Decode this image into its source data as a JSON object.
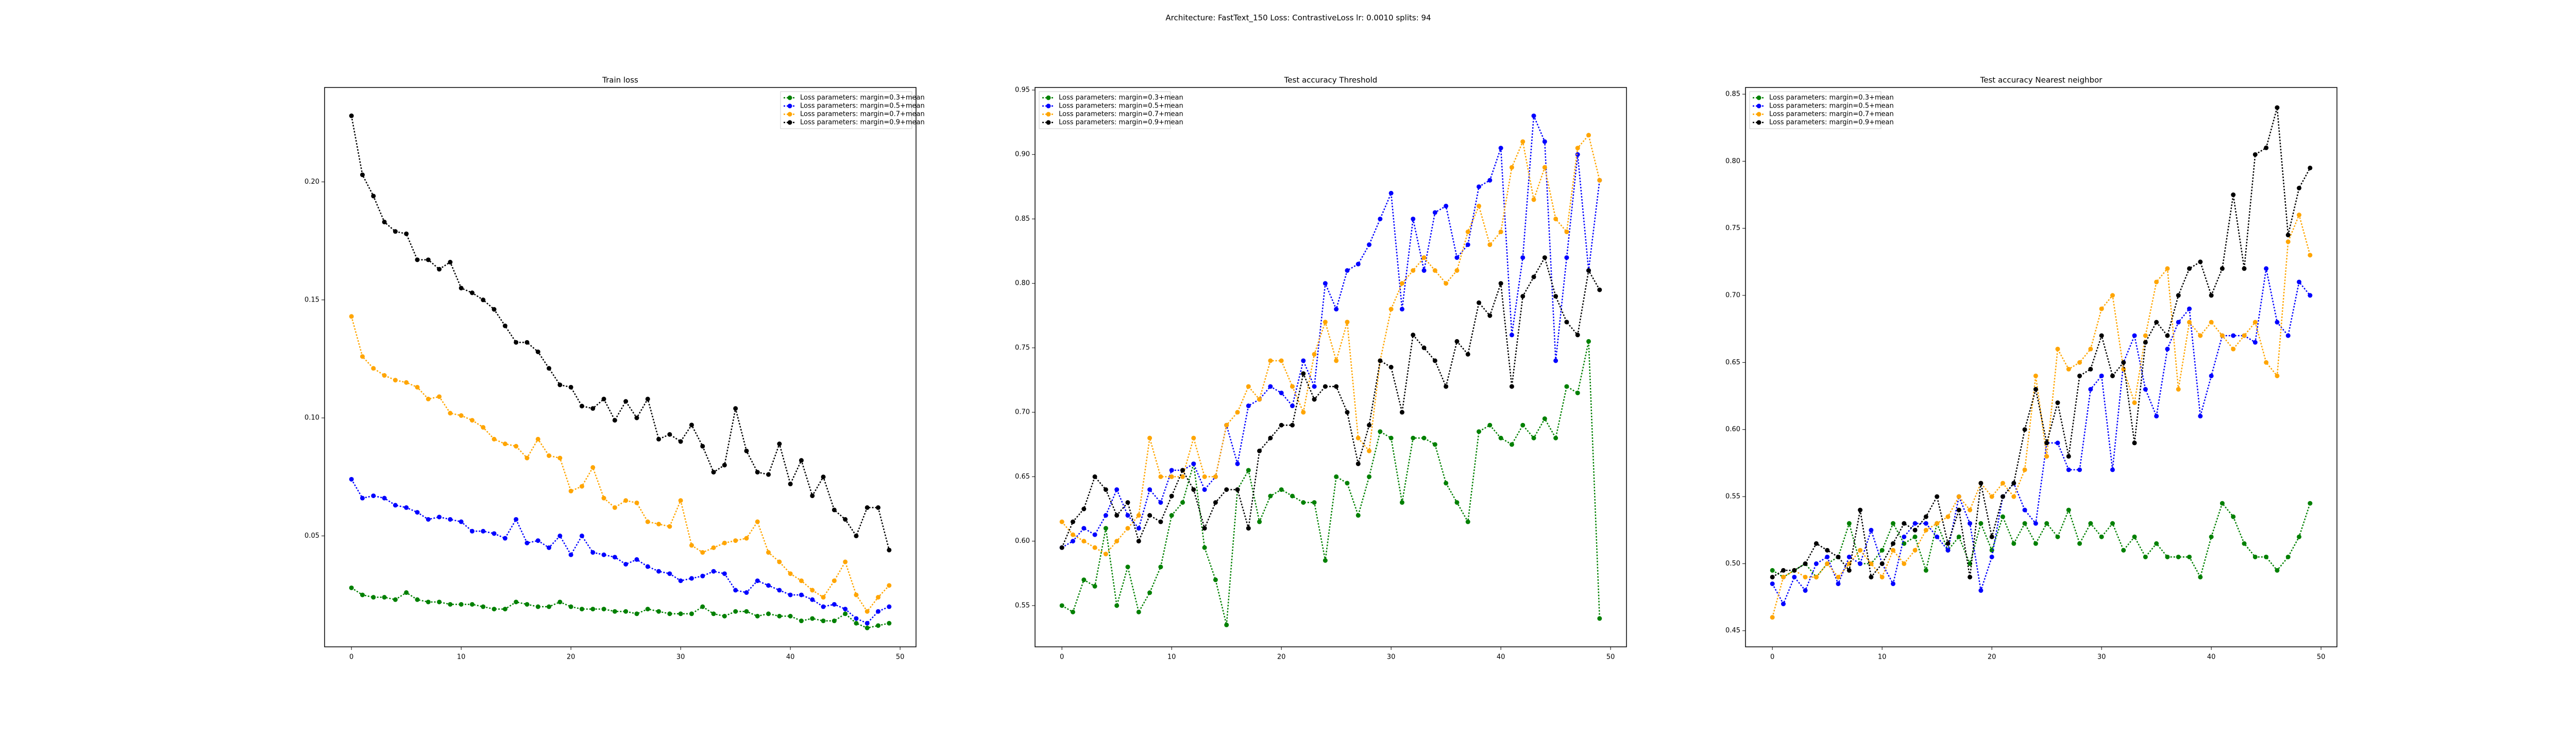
{
  "title": "Architecture: FastText_150 Loss: ContrastiveLoss lr: 0.0010 splits: 94",
  "chart_data": [
    {
      "type": "line",
      "title": "Train loss",
      "legend": "upper right",
      "x": [
        0,
        1,
        2,
        3,
        4,
        5,
        6,
        7,
        8,
        9,
        10,
        11,
        12,
        13,
        14,
        15,
        16,
        17,
        18,
        19,
        20,
        21,
        22,
        23,
        24,
        25,
        26,
        27,
        28,
        29,
        30,
        31,
        32,
        33,
        34,
        35,
        36,
        37,
        38,
        39,
        40,
        41,
        42,
        43,
        44,
        45,
        46,
        47,
        48,
        49
      ],
      "xlim": [
        -2.45,
        51.45
      ],
      "xticks": [
        0,
        10,
        20,
        30,
        40,
        50
      ],
      "ylim": [
        0.003,
        0.24
      ],
      "yticks": [
        0.05,
        {
          "value": 0.1,
          "label": "0.10"
        },
        0.15,
        {
          "value": 0.2,
          "label": "0.20"
        }
      ],
      "series": [
        {
          "name": "Loss parameters: margin=0.3+mean",
          "color": "green",
          "values": [
            0.028,
            0.025,
            0.024,
            0.024,
            0.023,
            0.026,
            0.023,
            0.022,
            0.022,
            0.021,
            0.021,
            0.021,
            0.02,
            0.019,
            0.019,
            0.022,
            0.021,
            0.02,
            0.02,
            0.022,
            0.02,
            0.019,
            0.019,
            0.019,
            0.018,
            0.018,
            0.017,
            0.019,
            0.018,
            0.017,
            0.017,
            0.017,
            0.02,
            0.017,
            0.016,
            0.018,
            0.018,
            0.016,
            0.017,
            0.016,
            0.016,
            0.014,
            0.015,
            0.014,
            0.014,
            0.017,
            0.013,
            0.011,
            0.012,
            0.013
          ]
        },
        {
          "name": "Loss parameters: margin=0.5+mean",
          "color": "blue",
          "values": [
            0.074,
            0.066,
            0.067,
            0.066,
            0.063,
            0.062,
            0.06,
            0.057,
            0.058,
            0.057,
            0.056,
            0.052,
            0.052,
            0.051,
            0.049,
            0.057,
            0.047,
            0.048,
            0.045,
            0.05,
            0.042,
            0.05,
            0.043,
            0.042,
            0.041,
            0.038,
            0.04,
            0.037,
            0.035,
            0.034,
            0.031,
            0.032,
            0.033,
            0.035,
            0.034,
            0.027,
            0.026,
            0.031,
            0.029,
            0.027,
            0.025,
            0.025,
            0.023,
            0.02,
            0.021,
            0.019,
            0.015,
            0.013,
            0.018,
            0.02
          ]
        },
        {
          "name": "Loss parameters: margin=0.7+mean",
          "color": "orange",
          "values": [
            0.143,
            0.126,
            0.121,
            0.118,
            0.116,
            0.115,
            0.113,
            0.108,
            0.109,
            0.102,
            0.101,
            0.099,
            0.096,
            0.091,
            0.089,
            0.088,
            0.083,
            0.091,
            0.084,
            0.083,
            0.069,
            0.071,
            0.079,
            0.066,
            0.062,
            0.065,
            0.064,
            0.056,
            0.055,
            0.054,
            0.065,
            0.046,
            0.043,
            0.045,
            0.047,
            0.048,
            0.049,
            0.056,
            0.043,
            0.039,
            0.034,
            0.031,
            0.027,
            0.024,
            0.031,
            0.039,
            0.025,
            0.018,
            0.024,
            0.029
          ]
        },
        {
          "name": "Loss parameters: margin=0.9+mean",
          "color": "black",
          "values": [
            0.228,
            0.203,
            0.194,
            0.183,
            0.179,
            0.178,
            0.167,
            0.167,
            0.163,
            0.166,
            0.155,
            0.153,
            0.15,
            0.146,
            0.139,
            0.132,
            0.132,
            0.128,
            0.121,
            0.114,
            0.113,
            0.105,
            0.104,
            0.108,
            0.099,
            0.107,
            0.1,
            0.108,
            0.091,
            0.093,
            0.09,
            0.097,
            0.088,
            0.077,
            0.08,
            0.104,
            0.086,
            0.077,
            0.076,
            0.089,
            0.072,
            0.082,
            0.067,
            0.075,
            0.061,
            0.057,
            0.05,
            0.062,
            0.062,
            0.044
          ]
        }
      ]
    },
    {
      "type": "line",
      "title": "Test accuracy Threshold",
      "legend": "upper left",
      "x": [
        0,
        1,
        2,
        3,
        4,
        5,
        6,
        7,
        8,
        9,
        10,
        11,
        12,
        13,
        14,
        15,
        16,
        17,
        18,
        19,
        20,
        21,
        22,
        23,
        24,
        25,
        26,
        27,
        28,
        29,
        30,
        31,
        32,
        33,
        34,
        35,
        36,
        37,
        38,
        39,
        40,
        41,
        42,
        43,
        44,
        45,
        46,
        47,
        48,
        49
      ],
      "xlim": [
        -2.45,
        51.45
      ],
      "xticks": [
        0,
        10,
        20,
        30,
        40,
        50
      ],
      "ylim": [
        0.518,
        0.952
      ],
      "yticks": [
        0.55,
        {
          "value": 0.6,
          "label": "0.60"
        },
        0.65,
        {
          "value": 0.7,
          "label": "0.70"
        },
        0.75,
        {
          "value": 0.8,
          "label": "0.80"
        },
        0.85,
        {
          "value": 0.9,
          "label": "0.90"
        },
        0.95
      ],
      "series": [
        {
          "name": "Loss parameters: margin=0.3+mean",
          "color": "green",
          "values": [
            0.55,
            0.545,
            0.57,
            0.565,
            0.61,
            0.55,
            0.58,
            0.545,
            0.56,
            0.58,
            0.62,
            0.63,
            0.66,
            0.595,
            0.57,
            0.535,
            0.64,
            0.655,
            0.615,
            0.635,
            0.64,
            0.635,
            0.63,
            0.63,
            0.585,
            0.65,
            0.645,
            0.62,
            0.65,
            0.685,
            0.68,
            0.63,
            0.68,
            0.68,
            0.675,
            0.645,
            0.63,
            0.615,
            0.685,
            0.69,
            0.68,
            0.675,
            0.69,
            0.68,
            0.695,
            0.68,
            0.72,
            0.715,
            0.755,
            0.54
          ]
        },
        {
          "name": "Loss parameters: margin=0.5+mean",
          "color": "blue",
          "values": [
            0.595,
            0.6,
            0.61,
            0.605,
            0.62,
            0.64,
            0.62,
            0.61,
            0.64,
            0.63,
            0.655,
            0.655,
            0.66,
            0.64,
            0.65,
            0.69,
            0.66,
            0.705,
            0.71,
            0.72,
            0.715,
            0.705,
            0.74,
            0.72,
            0.8,
            0.78,
            0.81,
            0.815,
            0.83,
            0.85,
            0.87,
            0.78,
            0.85,
            0.81,
            0.855,
            0.86,
            0.82,
            0.83,
            0.875,
            0.88,
            0.905,
            0.76,
            0.82,
            0.93,
            0.91,
            0.74,
            0.82,
            0.9,
            0.81,
            0.88
          ]
        },
        {
          "name": "Loss parameters: margin=0.7+mean",
          "color": "orange",
          "values": [
            0.615,
            0.605,
            0.6,
            0.595,
            0.59,
            0.6,
            0.61,
            0.62,
            0.68,
            0.65,
            0.65,
            0.65,
            0.68,
            0.65,
            0.65,
            0.69,
            0.7,
            0.72,
            0.71,
            0.74,
            0.74,
            0.72,
            0.7,
            0.745,
            0.77,
            0.74,
            0.77,
            0.68,
            0.67,
            0.74,
            0.78,
            0.8,
            0.81,
            0.82,
            0.81,
            0.8,
            0.81,
            0.84,
            0.86,
            0.83,
            0.84,
            0.89,
            0.91,
            0.865,
            0.89,
            0.85,
            0.84,
            0.905,
            0.915,
            0.88
          ]
        },
        {
          "name": "Loss parameters: margin=0.9+mean",
          "color": "black",
          "values": [
            0.595,
            0.615,
            0.625,
            0.65,
            0.64,
            0.62,
            0.63,
            0.6,
            0.62,
            0.615,
            0.635,
            0.655,
            0.64,
            0.61,
            0.63,
            0.64,
            0.64,
            0.61,
            0.67,
            0.68,
            0.69,
            0.69,
            0.73,
            0.71,
            0.72,
            0.72,
            0.7,
            0.66,
            0.69,
            0.74,
            0.735,
            0.7,
            0.76,
            0.75,
            0.74,
            0.72,
            0.755,
            0.745,
            0.785,
            0.775,
            0.8,
            0.72,
            0.79,
            0.805,
            0.82,
            0.79,
            0.77,
            0.76,
            0.81,
            0.795
          ]
        }
      ]
    },
    {
      "type": "line",
      "title": "Test accuracy Nearest neighbor",
      "legend": "upper left",
      "x": [
        0,
        1,
        2,
        3,
        4,
        5,
        6,
        7,
        8,
        9,
        10,
        11,
        12,
        13,
        14,
        15,
        16,
        17,
        18,
        19,
        20,
        21,
        22,
        23,
        24,
        25,
        26,
        27,
        28,
        29,
        30,
        31,
        32,
        33,
        34,
        35,
        36,
        37,
        38,
        39,
        40,
        41,
        42,
        43,
        44,
        45,
        46,
        47,
        48,
        49
      ],
      "xlim": [
        -2.45,
        51.45
      ],
      "xticks": [
        0,
        10,
        20,
        30,
        40,
        50
      ],
      "ylim": [
        0.438,
        0.855
      ],
      "yticks": [
        0.45,
        {
          "value": 0.5,
          "label": "0.50"
        },
        0.55,
        {
          "value": 0.6,
          "label": "0.60"
        },
        0.65,
        {
          "value": 0.7,
          "label": "0.70"
        },
        0.75,
        {
          "value": 0.8,
          "label": "0.80"
        },
        0.85
      ],
      "series": [
        {
          "name": "Loss parameters: margin=0.3+mean",
          "color": "green",
          "values": [
            0.495,
            0.49,
            0.495,
            0.5,
            0.49,
            0.5,
            0.505,
            0.53,
            0.5,
            0.5,
            0.51,
            0.53,
            0.515,
            0.52,
            0.495,
            0.53,
            0.51,
            0.52,
            0.5,
            0.53,
            0.51,
            0.535,
            0.515,
            0.53,
            0.515,
            0.53,
            0.52,
            0.54,
            0.515,
            0.53,
            0.52,
            0.53,
            0.51,
            0.52,
            0.505,
            0.515,
            0.505,
            0.505,
            0.505,
            0.49,
            0.52,
            0.545,
            0.535,
            0.515,
            0.505,
            0.505,
            0.495,
            0.505,
            0.52,
            0.545
          ]
        },
        {
          "name": "Loss parameters: margin=0.5+mean",
          "color": "blue",
          "values": [
            0.485,
            0.47,
            0.49,
            0.48,
            0.5,
            0.505,
            0.485,
            0.505,
            0.5,
            0.525,
            0.5,
            0.485,
            0.52,
            0.53,
            0.53,
            0.52,
            0.51,
            0.55,
            0.53,
            0.48,
            0.505,
            0.55,
            0.56,
            0.54,
            0.53,
            0.59,
            0.59,
            0.57,
            0.57,
            0.63,
            0.64,
            0.57,
            0.65,
            0.67,
            0.63,
            0.61,
            0.66,
            0.68,
            0.69,
            0.61,
            0.64,
            0.67,
            0.67,
            0.67,
            0.665,
            0.72,
            0.68,
            0.67,
            0.71,
            0.7
          ]
        },
        {
          "name": "Loss parameters: margin=0.7+mean",
          "color": "orange",
          "values": [
            0.46,
            0.49,
            0.495,
            0.49,
            0.49,
            0.5,
            0.49,
            0.5,
            0.51,
            0.5,
            0.49,
            0.51,
            0.5,
            0.51,
            0.525,
            0.53,
            0.535,
            0.55,
            0.54,
            0.56,
            0.55,
            0.56,
            0.55,
            0.57,
            0.64,
            0.58,
            0.66,
            0.645,
            0.65,
            0.66,
            0.69,
            0.7,
            0.645,
            0.62,
            0.67,
            0.71,
            0.72,
            0.63,
            0.68,
            0.67,
            0.68,
            0.67,
            0.66,
            0.67,
            0.68,
            0.65,
            0.64,
            0.74,
            0.76,
            0.73
          ]
        },
        {
          "name": "Loss parameters: margin=0.9+mean",
          "color": "black",
          "values": [
            0.49,
            0.495,
            0.495,
            0.5,
            0.515,
            0.51,
            0.505,
            0.495,
            0.54,
            0.49,
            0.5,
            0.515,
            0.53,
            0.525,
            0.535,
            0.55,
            0.515,
            0.54,
            0.49,
            0.56,
            0.52,
            0.55,
            0.56,
            0.6,
            0.63,
            0.59,
            0.62,
            0.58,
            0.64,
            0.645,
            0.67,
            0.64,
            0.65,
            0.59,
            0.665,
            0.68,
            0.67,
            0.7,
            0.72,
            0.725,
            0.7,
            0.72,
            0.775,
            0.72,
            0.805,
            0.81,
            0.84,
            0.745,
            0.78,
            0.795
          ]
        }
      ]
    }
  ]
}
